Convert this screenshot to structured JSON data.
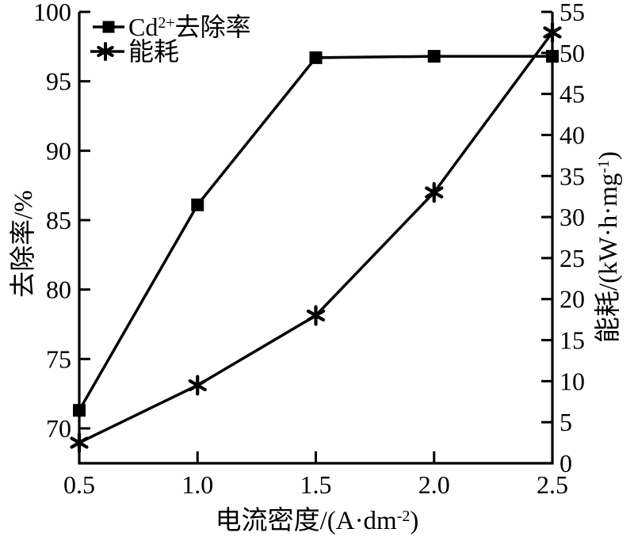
{
  "chart_data": {
    "type": "line",
    "title": "",
    "x": [
      0.5,
      1.0,
      1.5,
      2.0,
      2.5
    ],
    "series": [
      {
        "name": "Cd2+去除率",
        "axis": "left",
        "marker": "square",
        "color": "#000000",
        "values": [
          71.3,
          86.1,
          96.7,
          96.8,
          96.8
        ]
      },
      {
        "name": "能耗",
        "axis": "right",
        "marker": "asterisk",
        "color": "#000000",
        "values": [
          2.5,
          9.5,
          18,
          33,
          52.5
        ]
      }
    ],
    "axes": {
      "x": {
        "label": "电流密度/(A·dm⁻²)",
        "ticks": [
          0.5,
          1.0,
          1.5,
          2.0,
          2.5
        ],
        "range": [
          0.5,
          2.5
        ]
      },
      "left": {
        "label": "去除率/%",
        "ticks": [
          70,
          75,
          80,
          85,
          90,
          95,
          100
        ],
        "range": [
          70,
          100
        ]
      },
      "right": {
        "label": "能耗/(kW·h·mg⁻¹)",
        "ticks": [
          0,
          5,
          10,
          15,
          20,
          25,
          30,
          35,
          40,
          45,
          50,
          55
        ],
        "range": [
          0,
          55
        ]
      }
    },
    "grid": false,
    "legend_position": "top-left",
    "colors": {
      "foreground": "#000000",
      "background": "#ffffff"
    }
  },
  "legend": {
    "items": [
      {
        "pre": "Cd",
        "sup": "2+",
        "post": "去除率"
      },
      {
        "pre": "能耗",
        "sup": "",
        "post": ""
      }
    ]
  },
  "axis_titles": {
    "x": {
      "pre": "电流密度/(A·dm",
      "sup": "-2",
      "post": ")"
    },
    "left": {
      "text": "去除率/%"
    },
    "right": {
      "pre": "能耗/(kW·h·mg",
      "sup": "-1",
      "post": ")"
    }
  }
}
